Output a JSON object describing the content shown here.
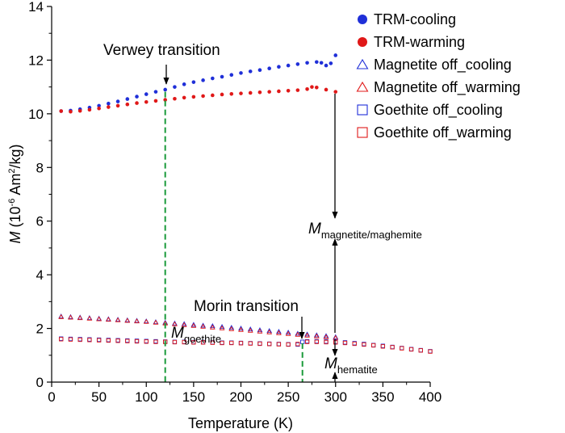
{
  "chart_data": {
    "type": "scatter",
    "xlabel": "Temperature (K)",
    "ylabel": {
      "italic": "M",
      "rest": " (10",
      "sup": "-6",
      "unit": " Am",
      "sup2": "2",
      "end": "/kg)"
    },
    "xlim": [
      0,
      400
    ],
    "ylim": [
      0,
      14
    ],
    "xticks": [
      "0",
      "50",
      "100",
      "150",
      "200",
      "250",
      "300",
      "350",
      "400"
    ],
    "yticks": [
      "0",
      "2",
      "4",
      "6",
      "8",
      "10",
      "12",
      "14"
    ],
    "grid": false,
    "legend_position": "top-right",
    "colors": {
      "blue": "#1f2fd8",
      "red": "#e01818",
      "green": "#1a9a3a"
    },
    "series": [
      {
        "name": "TRM-cooling",
        "marker": "circle-filled",
        "color": "blue",
        "x": [
          10,
          20,
          30,
          40,
          50,
          60,
          70,
          80,
          90,
          100,
          110,
          120,
          130,
          140,
          150,
          160,
          170,
          180,
          190,
          200,
          210,
          220,
          230,
          240,
          250,
          260,
          270,
          280,
          285,
          290,
          295,
          300
        ],
        "y": [
          10.1,
          10.12,
          10.17,
          10.23,
          10.3,
          10.38,
          10.46,
          10.55,
          10.64,
          10.73,
          10.82,
          10.9,
          11.0,
          11.1,
          11.18,
          11.25,
          11.32,
          11.38,
          11.45,
          11.52,
          11.58,
          11.63,
          11.69,
          11.75,
          11.8,
          11.85,
          11.9,
          11.93,
          11.9,
          11.8,
          11.88,
          12.18
        ]
      },
      {
        "name": "TRM-warming",
        "marker": "circle-filled",
        "color": "red",
        "x": [
          10,
          20,
          30,
          40,
          50,
          60,
          70,
          80,
          90,
          100,
          110,
          120,
          130,
          140,
          150,
          160,
          170,
          180,
          190,
          200,
          210,
          220,
          230,
          240,
          250,
          260,
          270,
          275,
          280,
          290,
          300
        ],
        "y": [
          10.1,
          10.08,
          10.11,
          10.15,
          10.2,
          10.25,
          10.3,
          10.35,
          10.4,
          10.44,
          10.48,
          10.52,
          10.56,
          10.6,
          10.63,
          10.66,
          10.69,
          10.72,
          10.74,
          10.76,
          10.78,
          10.8,
          10.82,
          10.84,
          10.86,
          10.88,
          10.92,
          11.0,
          10.98,
          10.9,
          10.82
        ]
      },
      {
        "name": "Magnetite off_cooling",
        "marker": "triangle-open",
        "color": "blue",
        "x": [
          10,
          20,
          30,
          40,
          50,
          60,
          70,
          80,
          90,
          100,
          110,
          120,
          130,
          140,
          150,
          160,
          170,
          180,
          190,
          200,
          210,
          220,
          230,
          240,
          250,
          260,
          270,
          280,
          290,
          300
        ],
        "y": [
          2.45,
          2.43,
          2.41,
          2.39,
          2.37,
          2.35,
          2.33,
          2.31,
          2.29,
          2.27,
          2.24,
          2.22,
          2.19,
          2.17,
          2.14,
          2.11,
          2.09,
          2.06,
          2.03,
          2.0,
          1.97,
          1.94,
          1.91,
          1.88,
          1.85,
          1.81,
          1.78,
          1.75,
          1.72,
          1.68
        ]
      },
      {
        "name": "Magnetite off_warming",
        "marker": "triangle-open",
        "color": "red",
        "x": [
          10,
          20,
          30,
          40,
          50,
          60,
          70,
          80,
          90,
          100,
          110,
          120,
          130,
          140,
          150,
          160,
          170,
          180,
          190,
          200,
          210,
          220,
          230,
          240,
          250,
          260,
          270,
          280,
          290,
          300
        ],
        "y": [
          2.43,
          2.41,
          2.39,
          2.37,
          2.35,
          2.33,
          2.31,
          2.29,
          2.27,
          2.25,
          2.22,
          2.19,
          2.16,
          2.13,
          2.1,
          2.07,
          2.04,
          2.01,
          1.98,
          1.95,
          1.92,
          1.89,
          1.86,
          1.83,
          1.8,
          1.77,
          1.74,
          1.71,
          1.68,
          1.65
        ]
      },
      {
        "name": "Goethite off_cooling",
        "marker": "square-open",
        "color": "blue",
        "x": [
          10,
          20,
          30,
          40,
          50,
          60,
          70,
          80,
          90,
          100,
          110,
          120,
          130,
          140,
          150,
          160,
          170,
          180,
          190,
          200,
          210,
          220,
          230,
          240,
          250,
          260,
          265,
          270,
          280,
          290,
          300,
          310,
          320,
          330,
          340,
          350,
          360,
          370,
          380,
          390,
          400
        ],
        "y": [
          1.62,
          1.61,
          1.6,
          1.59,
          1.58,
          1.57,
          1.56,
          1.55,
          1.54,
          1.53,
          1.52,
          1.51,
          1.5,
          1.5,
          1.49,
          1.49,
          1.48,
          1.47,
          1.47,
          1.46,
          1.45,
          1.44,
          1.43,
          1.42,
          1.41,
          1.4,
          1.5,
          1.52,
          1.52,
          1.51,
          1.5,
          1.48,
          1.45,
          1.42,
          1.38,
          1.35,
          1.31,
          1.27,
          1.23,
          1.19,
          1.15
        ]
      },
      {
        "name": "Goethite off_warming",
        "marker": "square-open",
        "color": "red",
        "x": [
          10,
          20,
          30,
          40,
          50,
          60,
          70,
          80,
          90,
          100,
          110,
          120,
          130,
          140,
          150,
          160,
          170,
          180,
          190,
          200,
          210,
          220,
          230,
          240,
          250,
          260,
          270,
          280,
          290,
          300,
          310,
          320,
          330,
          340,
          350,
          360,
          370,
          380,
          390,
          400
        ],
        "y": [
          1.6,
          1.59,
          1.58,
          1.57,
          1.56,
          1.55,
          1.54,
          1.53,
          1.52,
          1.51,
          1.5,
          1.5,
          1.49,
          1.49,
          1.48,
          1.48,
          1.47,
          1.46,
          1.46,
          1.45,
          1.44,
          1.43,
          1.42,
          1.41,
          1.4,
          1.42,
          1.5,
          1.5,
          1.49,
          1.48,
          1.46,
          1.43,
          1.4,
          1.37,
          1.33,
          1.3,
          1.26,
          1.22,
          1.18,
          1.14
        ]
      }
    ],
    "annotations": {
      "verwey": {
        "text": "Verwey transition",
        "x": 120
      },
      "morin": {
        "text": "Morin transition",
        "x": 265
      },
      "m_goethite": {
        "main": "M",
        "sub": "goethite"
      },
      "m_magnetite": {
        "main": "M",
        "sub": "magnetite/maghemite"
      },
      "m_hematite": {
        "main": "M",
        "sub": "hematite"
      }
    }
  }
}
